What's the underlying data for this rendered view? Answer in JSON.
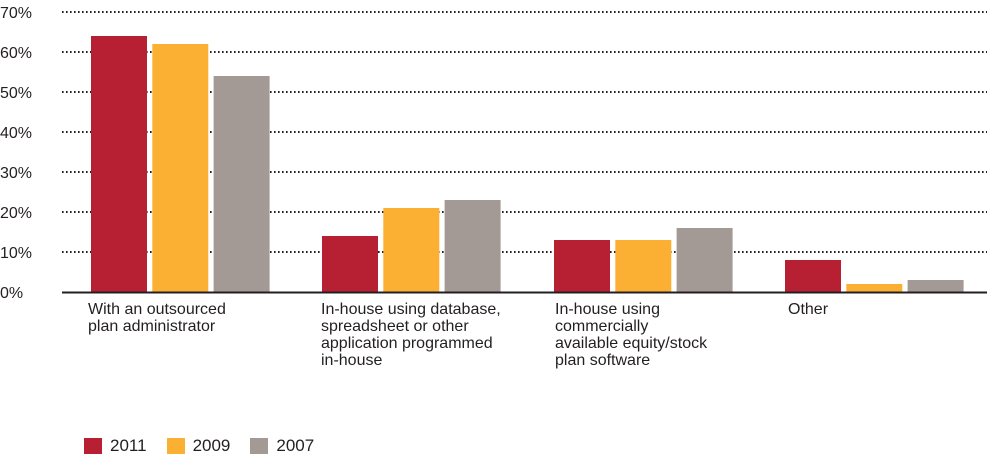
{
  "chart_data": {
    "type": "bar",
    "categories": [
      "With an outsourced\nplan administrator",
      "In-house using database,\nspreadsheet or other\napplication programmed\nin-house",
      "In-house using\ncommercially\navailable equity/stock\nplan software",
      "Other"
    ],
    "series": [
      {
        "name": "2011",
        "values": [
          64,
          14,
          13,
          8
        ]
      },
      {
        "name": "2009",
        "values": [
          62,
          21,
          13,
          2
        ]
      },
      {
        "name": "2007",
        "values": [
          54,
          23,
          16,
          3
        ]
      }
    ],
    "ylim": [
      0,
      70
    ],
    "yticks": [
      "0%",
      "10%",
      "20%",
      "30%",
      "40%",
      "50%",
      "60%",
      "70%"
    ],
    "title": "",
    "xlabel": "",
    "ylabel": "",
    "grid": "dotted horizontal",
    "legend_position": "bottom-left",
    "colors": {
      "2011": "#b71f33",
      "2009": "#fbb034",
      "2007": "#a39a95",
      "grid": "#231f20",
      "text": "#231f20"
    }
  }
}
